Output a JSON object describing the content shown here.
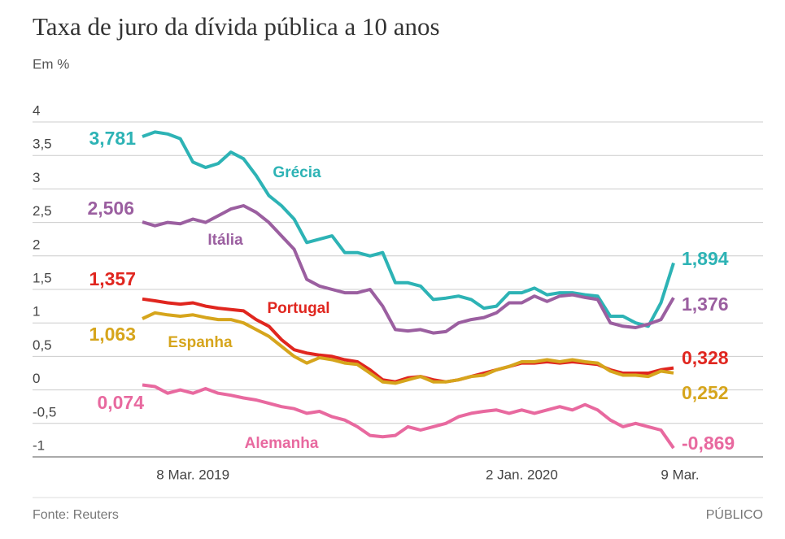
{
  "chart_data": {
    "type": "line",
    "title": "Taxa de juro da dívida pública a 10 anos",
    "subtitle": "Em %",
    "source": "Fonte: Reuters",
    "publisher": "PÚBLICO",
    "categories": [
      null,
      null,
      null,
      null,
      "8 Mar. 2019",
      null,
      null,
      null,
      null,
      null,
      null,
      null,
      null,
      null,
      null,
      null,
      null,
      null,
      null,
      null,
      null,
      null,
      null,
      null,
      null,
      null,
      null,
      null,
      null,
      null,
      "2 Jan. 2020",
      null,
      null,
      null,
      null,
      null,
      null,
      null,
      null,
      null,
      null,
      null,
      "9 Mar."
    ],
    "ylim": [
      -1,
      4
    ],
    "grid": true,
    "yticks": [
      -1,
      {
        "value": -0.5,
        "label": "-0,5"
      },
      0,
      {
        "value": 0.5,
        "label": "0,5"
      },
      1,
      {
        "value": 1.5,
        "label": "1,5"
      },
      2,
      {
        "value": 2.5,
        "label": "2,5"
      },
      3,
      {
        "value": 3.5,
        "label": "3,5"
      },
      4
    ],
    "series": [
      {
        "name": "Grécia",
        "color": "#2db3b5",
        "values": [
          3.781,
          3.85,
          3.82,
          3.75,
          3.4,
          3.32,
          3.38,
          3.55,
          3.45,
          3.2,
          2.9,
          2.75,
          2.55,
          2.2,
          2.25,
          2.3,
          2.05,
          2.05,
          2.0,
          2.05,
          1.6,
          1.6,
          1.55,
          1.35,
          1.37,
          1.4,
          1.35,
          1.22,
          1.25,
          1.45,
          1.45,
          1.52,
          1.42,
          1.45,
          1.45,
          1.42,
          1.4,
          1.1,
          1.1,
          1.0,
          0.95,
          1.3,
          1.894
        ],
        "value_labels": [
          "3,781",
          null,
          null,
          null,
          null,
          null,
          null,
          null,
          null,
          null,
          null,
          null,
          null,
          null,
          null,
          null,
          null,
          null,
          null,
          null,
          null,
          null,
          null,
          null,
          null,
          null,
          null,
          null,
          null,
          null,
          null,
          null,
          null,
          null,
          null,
          null,
          null,
          null,
          null,
          null,
          null,
          null,
          "1,894"
        ]
      },
      {
        "name": "Itália",
        "color": "#9b5fa0",
        "values": [
          2.506,
          2.45,
          2.5,
          2.48,
          2.55,
          2.5,
          2.6,
          2.7,
          2.75,
          2.65,
          2.5,
          2.3,
          2.1,
          1.65,
          1.55,
          1.5,
          1.45,
          1.45,
          1.5,
          1.25,
          0.9,
          0.88,
          0.9,
          0.85,
          0.87,
          1.0,
          1.05,
          1.08,
          1.15,
          1.3,
          1.3,
          1.4,
          1.32,
          1.4,
          1.42,
          1.38,
          1.35,
          1.0,
          0.95,
          0.93,
          0.98,
          1.05,
          1.376
        ],
        "value_labels": [
          "2,506",
          null,
          null,
          null,
          null,
          null,
          null,
          null,
          null,
          null,
          null,
          null,
          null,
          null,
          null,
          null,
          null,
          null,
          null,
          null,
          null,
          null,
          null,
          null,
          null,
          null,
          null,
          null,
          null,
          null,
          null,
          null,
          null,
          null,
          null,
          null,
          null,
          null,
          null,
          null,
          null,
          null,
          "1,376"
        ]
      },
      {
        "name": "Portugal",
        "color": "#e0261f",
        "values": [
          1.357,
          1.33,
          1.3,
          1.28,
          1.3,
          1.25,
          1.22,
          1.2,
          1.18,
          1.05,
          0.95,
          0.75,
          0.6,
          0.55,
          0.52,
          0.5,
          0.45,
          0.42,
          0.3,
          0.15,
          0.12,
          0.18,
          0.2,
          0.15,
          0.12,
          0.15,
          0.2,
          0.25,
          0.3,
          0.35,
          0.4,
          0.4,
          0.42,
          0.4,
          0.42,
          0.4,
          0.38,
          0.3,
          0.25,
          0.25,
          0.25,
          0.3,
          0.328
        ],
        "value_labels": [
          "1,357",
          null,
          null,
          null,
          null,
          null,
          null,
          null,
          null,
          null,
          null,
          null,
          null,
          null,
          null,
          null,
          null,
          null,
          null,
          null,
          null,
          null,
          null,
          null,
          null,
          null,
          null,
          null,
          null,
          null,
          null,
          null,
          null,
          null,
          null,
          null,
          null,
          null,
          null,
          null,
          null,
          null,
          "0,328"
        ]
      },
      {
        "name": "Espanha",
        "color": "#d6a51c",
        "values": [
          1.063,
          1.15,
          1.12,
          1.1,
          1.12,
          1.08,
          1.05,
          1.05,
          1.0,
          0.9,
          0.8,
          0.65,
          0.5,
          0.4,
          0.48,
          0.45,
          0.4,
          0.38,
          0.25,
          0.12,
          0.1,
          0.15,
          0.2,
          0.12,
          0.12,
          0.15,
          0.2,
          0.22,
          0.3,
          0.35,
          0.42,
          0.42,
          0.45,
          0.42,
          0.45,
          0.42,
          0.4,
          0.28,
          0.22,
          0.22,
          0.2,
          0.28,
          0.252
        ],
        "value_labels": [
          "1,063",
          null,
          null,
          null,
          null,
          null,
          null,
          null,
          null,
          null,
          null,
          null,
          null,
          null,
          null,
          null,
          null,
          null,
          null,
          null,
          null,
          null,
          null,
          null,
          null,
          null,
          null,
          null,
          null,
          null,
          null,
          null,
          null,
          null,
          null,
          null,
          null,
          null,
          null,
          null,
          null,
          null,
          "0,252"
        ]
      },
      {
        "name": "Alemanha",
        "color": "#e8699f",
        "values": [
          0.074,
          0.05,
          -0.05,
          0.0,
          -0.05,
          0.02,
          -0.05,
          -0.08,
          -0.12,
          -0.15,
          -0.2,
          -0.25,
          -0.28,
          -0.35,
          -0.32,
          -0.4,
          -0.45,
          -0.55,
          -0.68,
          -0.7,
          -0.68,
          -0.55,
          -0.6,
          -0.55,
          -0.5,
          -0.4,
          -0.35,
          -0.32,
          -0.3,
          -0.35,
          -0.3,
          -0.35,
          -0.3,
          -0.25,
          -0.3,
          -0.22,
          -0.3,
          -0.45,
          -0.55,
          -0.5,
          -0.55,
          -0.6,
          -0.869
        ],
        "value_labels": [
          "0,074",
          null,
          null,
          null,
          null,
          null,
          null,
          null,
          null,
          null,
          null,
          null,
          null,
          null,
          null,
          null,
          null,
          null,
          null,
          null,
          null,
          null,
          null,
          null,
          null,
          null,
          null,
          null,
          null,
          null,
          null,
          null,
          null,
          null,
          null,
          null,
          null,
          null,
          null,
          null,
          null,
          null,
          "-0,869"
        ]
      }
    ]
  }
}
